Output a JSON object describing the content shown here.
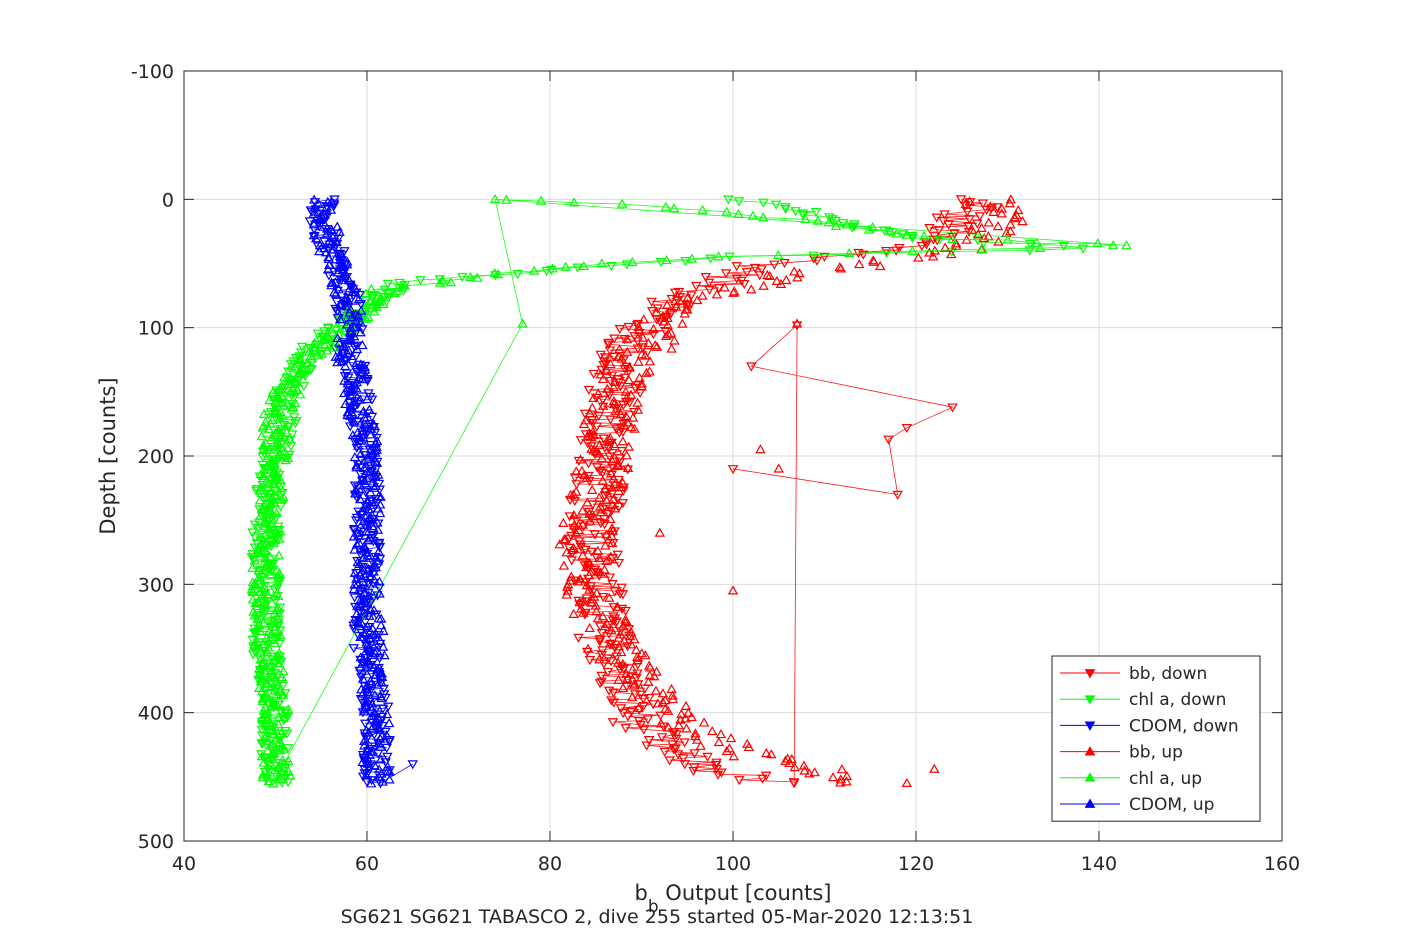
{
  "chart_data": {
    "type": "scatter",
    "xlabel_main": "b",
    "xlabel_sub": "b",
    "xlabel_rest": " Output [counts]",
    "ylabel": "Depth [counts]",
    "caption": "SG621 SG621 TABASCO 2, dive 255 started 05-Mar-2020 12:13:51",
    "xlim": [
      40,
      160
    ],
    "ylim": [
      -100,
      500
    ],
    "y_reversed": true,
    "grid": true,
    "xticks": [
      "40",
      "60",
      "80",
      "100",
      "120",
      "140",
      "160"
    ],
    "yticks": [
      "-100",
      "0",
      "100",
      "200",
      "300",
      "400",
      "500"
    ],
    "legend_position": "bottom-right",
    "series": [
      {
        "name": "bb, down",
        "color": "#ff0000",
        "marker": "triangle-down",
        "lines": true,
        "profile": [
          [
            0,
            124
          ],
          [
            5,
            128
          ],
          [
            10,
            125
          ],
          [
            20,
            124
          ],
          [
            30,
            122
          ],
          [
            40,
            118
          ],
          [
            50,
            104
          ],
          [
            60,
            100
          ],
          [
            70,
            97
          ],
          [
            80,
            94
          ],
          [
            90,
            92
          ],
          [
            100,
            90
          ],
          [
            110,
            89
          ],
          [
            120,
            88
          ],
          [
            130,
            87
          ],
          [
            140,
            87
          ],
          [
            160,
            87
          ],
          [
            180,
            86
          ],
          [
            200,
            86
          ],
          [
            230,
            85
          ],
          [
            260,
            85
          ],
          [
            300,
            85
          ],
          [
            340,
            86
          ],
          [
            380,
            88
          ],
          [
            410,
            90
          ],
          [
            430,
            93
          ],
          [
            445,
            98
          ],
          [
            455,
            105
          ]
        ],
        "spread": 3,
        "outliers": [
          [
            98,
            107
          ],
          [
            130,
            102
          ],
          [
            162,
            124
          ],
          [
            178,
            119
          ],
          [
            187,
            117
          ],
          [
            230,
            118
          ],
          [
            210,
            100
          ]
        ]
      },
      {
        "name": "chl a, down",
        "color": "#00ff00",
        "marker": "triangle-down",
        "lines": true,
        "profile": [
          [
            0,
            100
          ],
          [
            10,
            108
          ],
          [
            20,
            112
          ],
          [
            30,
            120
          ],
          [
            38,
            140
          ],
          [
            45,
            100
          ],
          [
            55,
            80
          ],
          [
            65,
            64
          ],
          [
            75,
            62
          ],
          [
            85,
            60
          ],
          [
            95,
            58
          ],
          [
            105,
            56
          ],
          [
            115,
            54
          ],
          [
            125,
            53
          ],
          [
            140,
            52
          ],
          [
            160,
            51
          ],
          [
            200,
            50
          ],
          [
            250,
            49
          ],
          [
            300,
            49
          ],
          [
            350,
            49
          ],
          [
            400,
            50
          ],
          [
            455,
            50
          ]
        ],
        "spread": 1.6,
        "outliers": []
      },
      {
        "name": "CDOM, down",
        "color": "#0000ff",
        "marker": "triangle-down",
        "lines": true,
        "profile": [
          [
            0,
            55
          ],
          [
            20,
            55
          ],
          [
            40,
            56
          ],
          [
            60,
            57
          ],
          [
            80,
            58
          ],
          [
            100,
            58
          ],
          [
            120,
            58
          ],
          [
            150,
            59
          ],
          [
            200,
            60
          ],
          [
            250,
            60
          ],
          [
            300,
            60
          ],
          [
            350,
            60
          ],
          [
            400,
            61
          ],
          [
            455,
            61
          ]
        ],
        "spread": 1.5,
        "outliers": [
          [
            440,
            65
          ]
        ]
      },
      {
        "name": "bb, up",
        "color": "#ff0000",
        "marker": "triangle-up",
        "lines": false,
        "profile": [
          [
            0,
            128
          ],
          [
            20,
            130
          ],
          [
            40,
            125
          ],
          [
            60,
            105
          ],
          [
            80,
            96
          ],
          [
            100,
            92
          ],
          [
            130,
            89
          ],
          [
            160,
            87
          ],
          [
            200,
            86
          ],
          [
            250,
            84
          ],
          [
            300,
            84
          ],
          [
            340,
            86
          ],
          [
            370,
            89
          ],
          [
            400,
            93
          ],
          [
            420,
            97
          ],
          [
            435,
            103
          ],
          [
            445,
            110
          ],
          [
            455,
            113
          ]
        ],
        "spread": 3,
        "outliers": [
          [
            195,
            103
          ],
          [
            210,
            105
          ],
          [
            260,
            92
          ],
          [
            305,
            100
          ],
          [
            444,
            122
          ],
          [
            455,
            119
          ],
          [
            97,
            107
          ]
        ]
      },
      {
        "name": "chl a, up",
        "color": "#00ff00",
        "marker": "triangle-up",
        "lines": true,
        "profile": [
          [
            0,
            74
          ],
          [
            5,
            90
          ],
          [
            10,
            100
          ],
          [
            20,
            112
          ],
          [
            30,
            120
          ],
          [
            36,
            143
          ],
          [
            45,
            98
          ],
          [
            55,
            78
          ],
          [
            70,
            62
          ],
          [
            90,
            59
          ],
          [
            110,
            56
          ],
          [
            125,
            53
          ],
          [
            140,
            52
          ],
          [
            170,
            50
          ],
          [
            200,
            50
          ],
          [
            250,
            49
          ],
          [
            300,
            49
          ],
          [
            350,
            49
          ],
          [
            400,
            50
          ],
          [
            455,
            50
          ]
        ],
        "spread": 1.6,
        "outliers": [
          [
            97,
            77
          ],
          [
            0,
            74
          ],
          [
            36,
            143
          ]
        ]
      },
      {
        "name": "CDOM, up",
        "color": "#0000ff",
        "marker": "triangle-up",
        "lines": false,
        "profile": [
          [
            0,
            55
          ],
          [
            40,
            56
          ],
          [
            80,
            58
          ],
          [
            120,
            58
          ],
          [
            200,
            60
          ],
          [
            300,
            60
          ],
          [
            400,
            61
          ],
          [
            455,
            61
          ]
        ],
        "spread": 1.5,
        "outliers": []
      }
    ]
  }
}
